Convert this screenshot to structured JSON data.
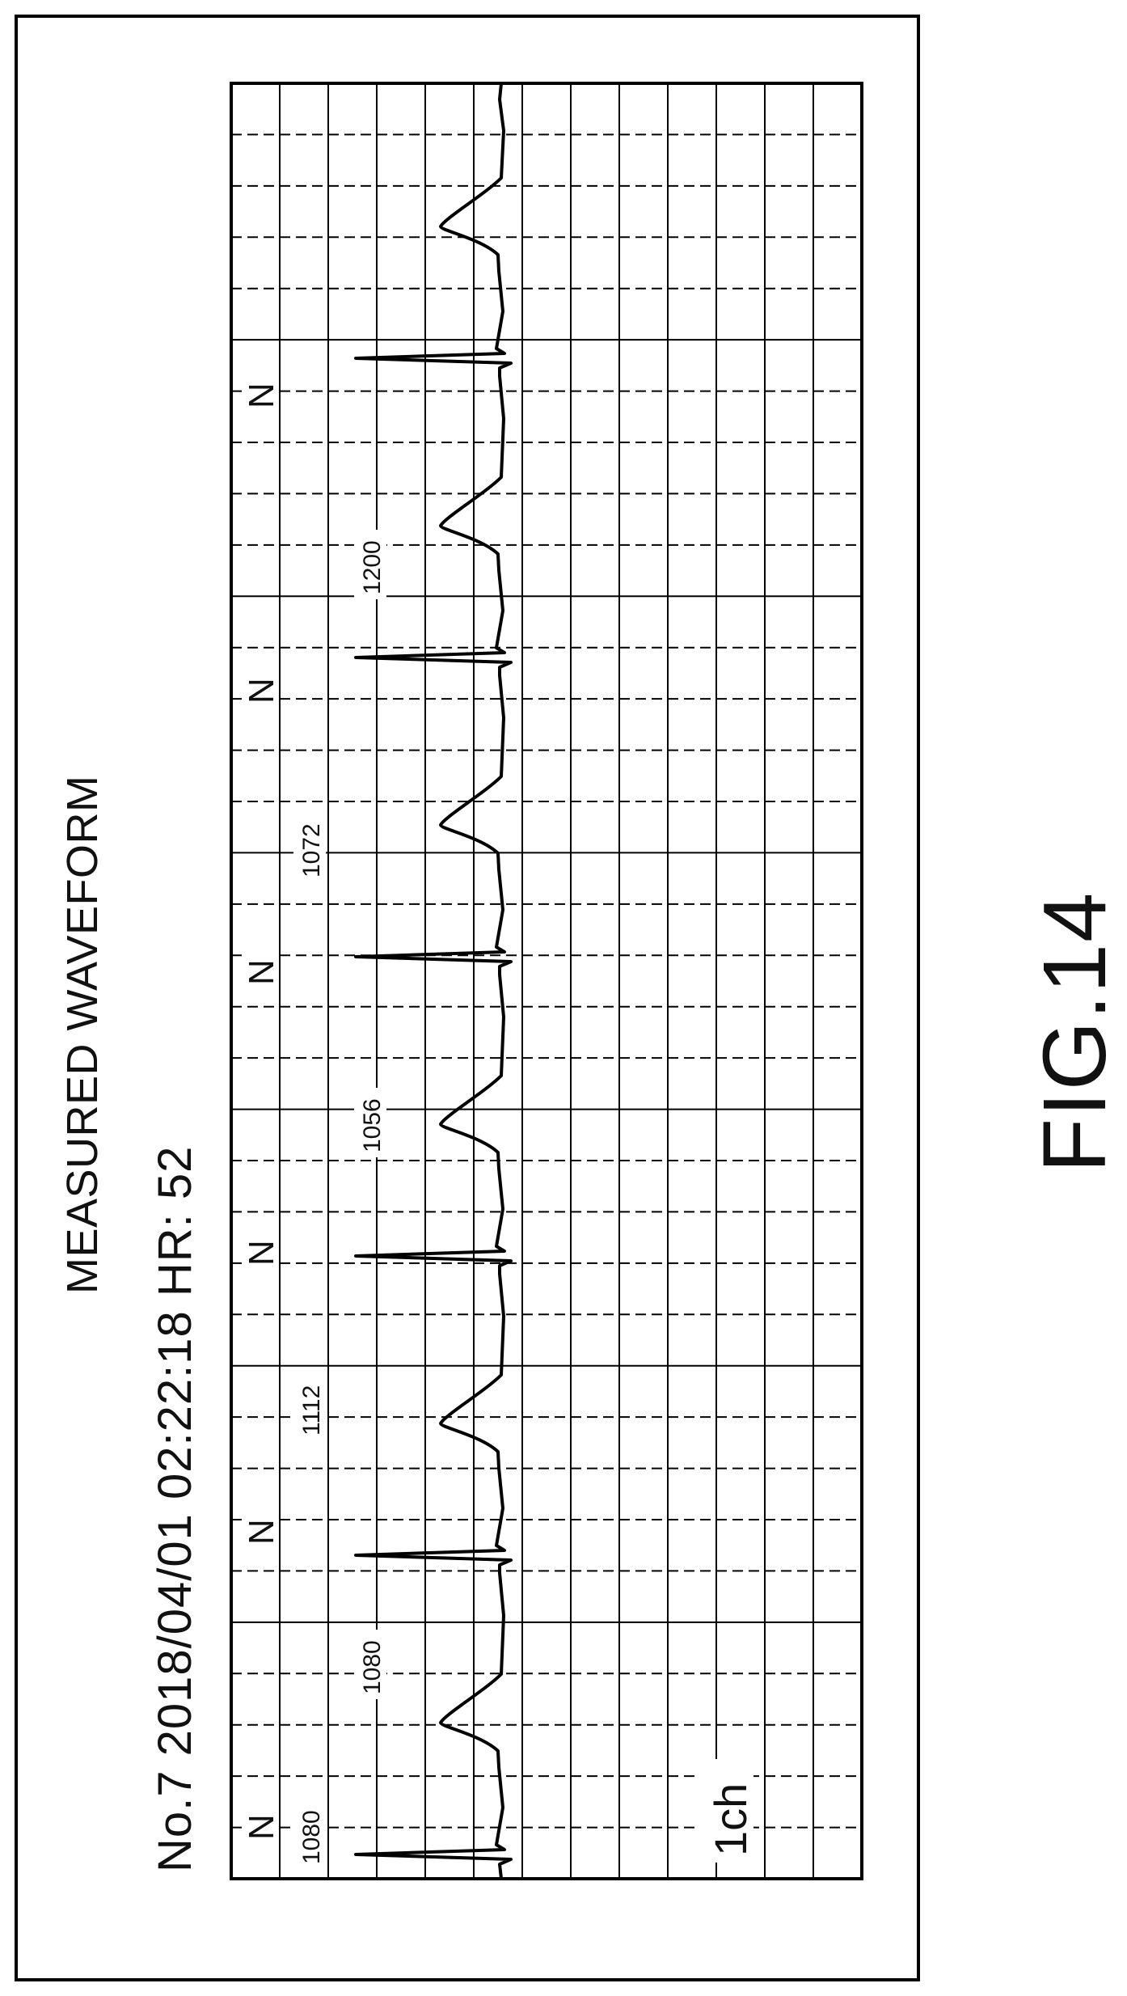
{
  "title": "MEASURED WAVEFORM",
  "header": "No.7 2018/04/01 02:22:18 HR: 52",
  "figure_label": "FIG.14",
  "chart_data": {
    "type": "line",
    "title": "MEASURED WAVEFORM",
    "subtitle": "No.7 2018/04/01 02:22:18 HR: 52",
    "record_no": "No.7",
    "date": "2018/04/01",
    "time": "02:22:18",
    "heart_rate": 52,
    "channel": "1ch",
    "beat_labels": [
      "N",
      "N",
      "N",
      "N",
      "N",
      "N"
    ],
    "rr_intervals": [
      "1080",
      "1080",
      "1112",
      "1056",
      "1072",
      "1200"
    ],
    "grid": true,
    "colors": {
      "trace": "#000000",
      "grid": "#000000"
    }
  }
}
